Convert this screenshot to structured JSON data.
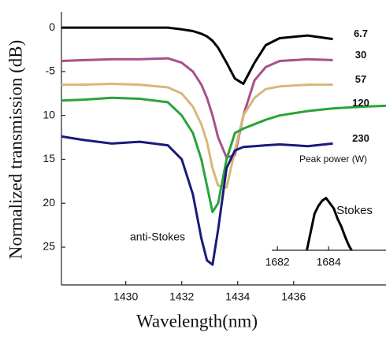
{
  "chart_data": [
    {
      "type": "line",
      "xlabel": "Wavelength(nm)",
      "ylabel": "Normalized transmission (dB)",
      "x": [
        1427.7,
        1428.5,
        1429.5,
        1430.5,
        1431.5,
        1432,
        1432.4,
        1432.7,
        1432.9,
        1433.1,
        1433.3,
        1433.6,
        1433.9,
        1434.2,
        1434.6,
        1435,
        1435.5,
        1436.5,
        1437.4,
        1438.5,
        1439.3
      ],
      "series": [
        {
          "name": "6.7",
          "color": "#000000",
          "values": [
            0,
            0,
            0,
            0,
            0,
            -0.2,
            -0.4,
            -0.7,
            -1,
            -1.5,
            -2.3,
            -4,
            -5.8,
            -6.4,
            -4,
            -2,
            -1.2,
            -0.9,
            -1.3,
            null,
            null
          ]
        },
        {
          "name": "30",
          "color": "#a8508a",
          "values": [
            -3.8,
            -3.7,
            -3.6,
            -3.6,
            -3.5,
            -4,
            -5,
            -6.5,
            -8,
            -10,
            -12.5,
            -14.8,
            -14.5,
            -10,
            -6,
            -4.5,
            -3.8,
            -3.6,
            -3.7,
            null,
            null
          ]
        },
        {
          "name": "57",
          "color": "#d8b77a",
          "values": [
            -6.5,
            -6.5,
            -6.4,
            -6.5,
            -6.8,
            -7.5,
            -9,
            -11,
            -13,
            -16,
            -18,
            -18.2,
            -14,
            -10,
            -8,
            -7,
            -6.7,
            -6.5,
            -6.5,
            null,
            null
          ]
        },
        {
          "name": "120",
          "color": "#2aa33a",
          "values": [
            -8.3,
            -8.2,
            -8,
            -8.1,
            -8.5,
            -10,
            -12,
            -15,
            -18,
            -21,
            -20,
            -15,
            -12,
            -11.5,
            -11,
            -10.5,
            -10,
            -9.5,
            -9.2,
            -9,
            -8.9
          ]
        },
        {
          "name": "230",
          "color": "#1a1a7a",
          "values": [
            -12.4,
            -12.8,
            -13.2,
            -13,
            -13.4,
            -15,
            -19,
            -24,
            -26.5,
            -27,
            -23,
            -16,
            -14,
            -13.6,
            -13.5,
            -13.4,
            -13.3,
            -13.5,
            -13.2,
            null,
            null
          ]
        }
      ],
      "xlim": [
        1427.7,
        1439.3
      ],
      "ylim": [
        -29.3,
        1.8
      ],
      "xticks": [
        1430,
        1432,
        1434,
        1436
      ],
      "yticks": [
        0,
        -5,
        {
          "value": -10,
          "label": "10"
        },
        {
          "value": -15,
          "label": "15"
        },
        {
          "value": -20,
          "label": "20"
        },
        {
          "value": -25,
          "label": "25"
        }
      ],
      "annotations": [
        "Peak power (W)",
        "anti-Stokes"
      ]
    },
    {
      "type": "line",
      "x": [
        1683.15,
        1683.3,
        1683.45,
        1683.6,
        1683.75,
        1683.9,
        1684.05,
        1684.2,
        1684.35,
        1684.5,
        1684.65,
        1684.8,
        1684.9
      ],
      "series": [
        {
          "name": "Stokes",
          "color": "#000000",
          "values": [
            0,
            0.35,
            0.7,
            0.85,
            0.95,
            1,
            0.9,
            0.8,
            0.6,
            0.45,
            0.25,
            0.08,
            0
          ]
        }
      ],
      "xlim": [
        1681.78,
        1686.24
      ],
      "ylim": [
        0,
        1.1
      ],
      "xticks": [
        1682,
        1684
      ]
    }
  ]
}
